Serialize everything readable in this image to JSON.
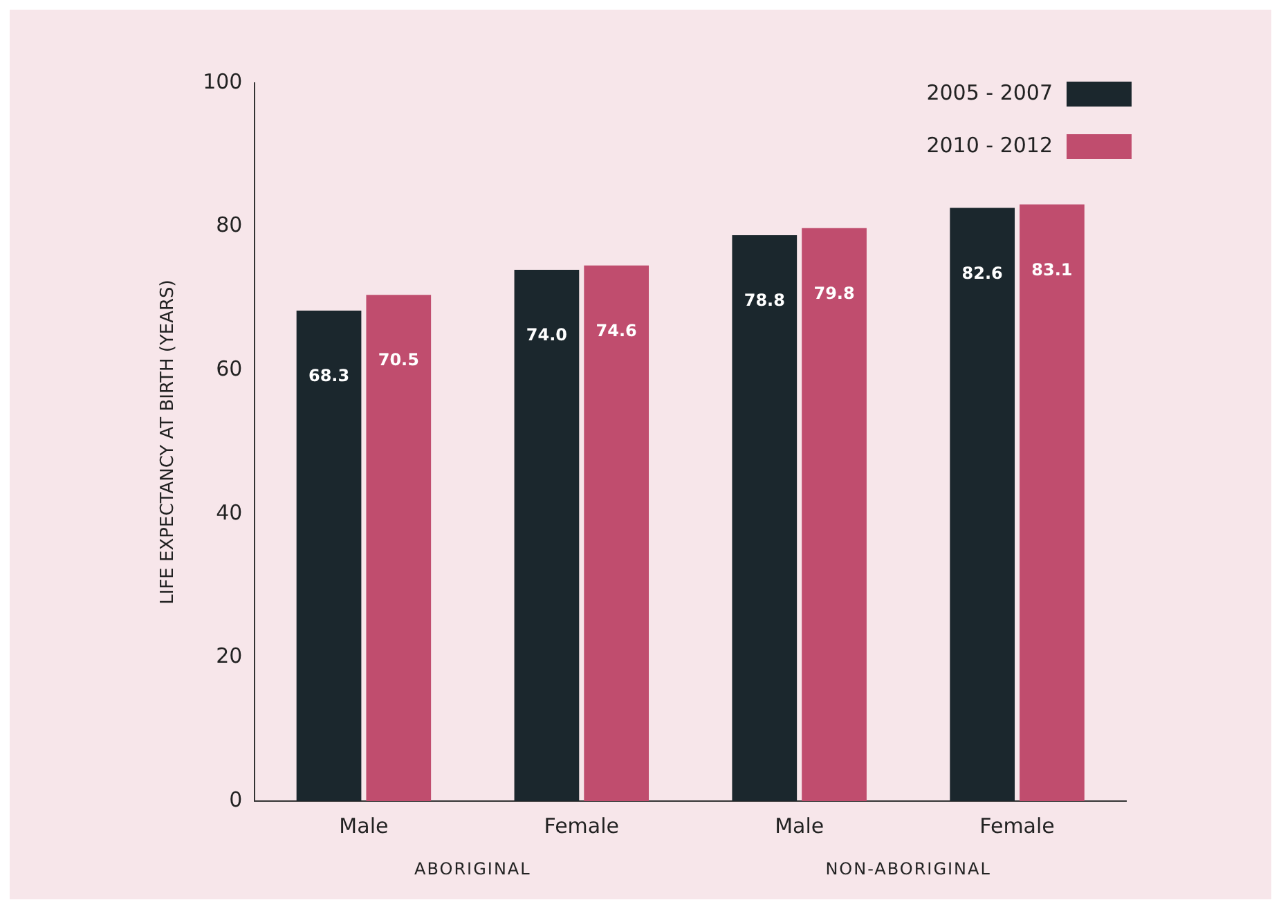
{
  "chart_data": {
    "type": "bar",
    "categories": [
      "Male",
      "Female",
      "Male",
      "Female"
    ],
    "series": [
      {
        "name": "2005 - 2007",
        "color": "#1b272d",
        "values": [
          68.3,
          74.0,
          78.8,
          82.6
        ],
        "value_labels": [
          "68.3",
          "74.0",
          "78.8",
          "82.6"
        ]
      },
      {
        "name": "2010 - 2012",
        "color": "#c04d6e",
        "values": [
          70.5,
          74.6,
          79.8,
          83.1
        ],
        "value_labels": [
          "70.5",
          "74.6",
          "79.8",
          "83.1"
        ]
      }
    ],
    "ylabel": "LIFE EXPECTANCY AT BIRTH (YEARS)",
    "ylim": [
      0,
      100
    ],
    "yticks": [
      0,
      20,
      40,
      60,
      80,
      100
    ],
    "grid": false,
    "legend": "top right",
    "annotations": [
      "ABORIGINAL",
      "NON-ABORIGINAL"
    ]
  }
}
